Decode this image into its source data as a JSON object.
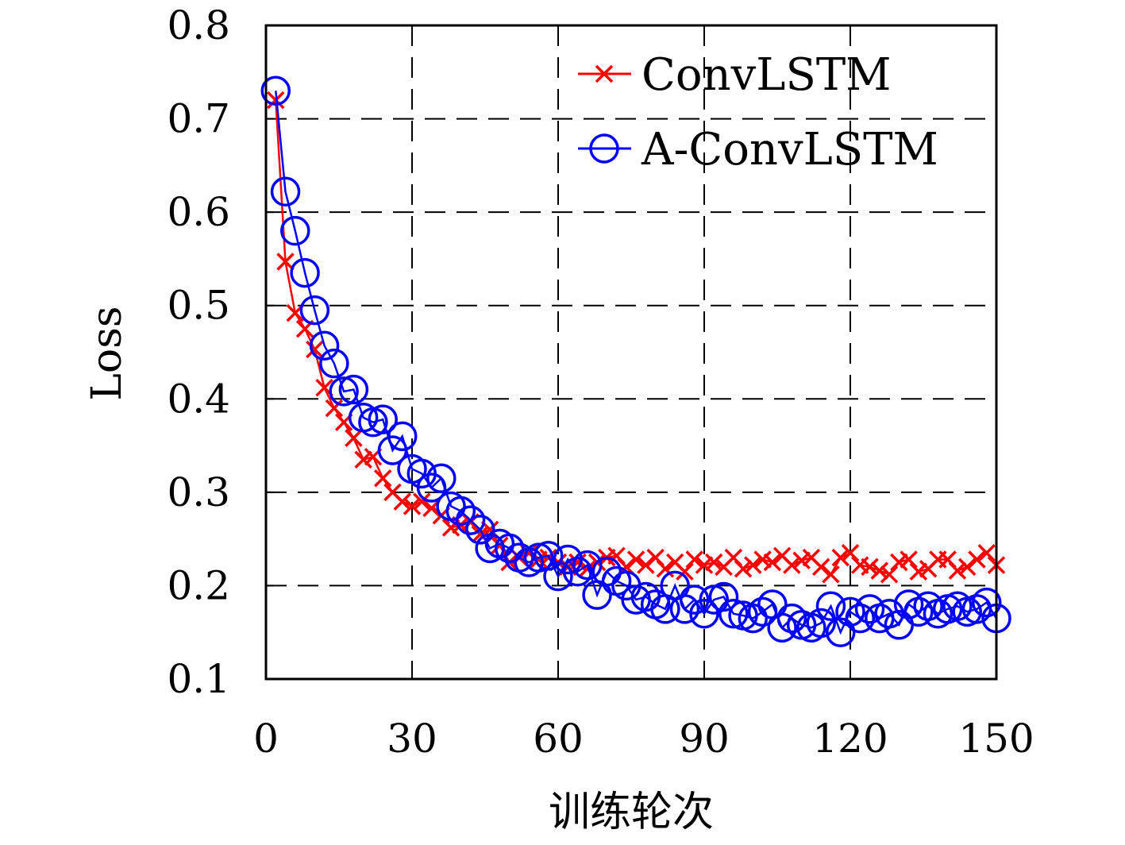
{
  "chart_data": {
    "type": "line",
    "title": "",
    "xlabel": "训练轮次",
    "ylabel": "Loss",
    "xlim": [
      0,
      150
    ],
    "ylim": [
      0.1,
      0.8
    ],
    "x_ticks": [
      "0",
      "30",
      "60",
      "90",
      "120",
      "150"
    ],
    "y_ticks": [
      "0.1",
      "0.2",
      "0.3",
      "0.4",
      "0.5",
      "0.6",
      "0.7",
      "0.8"
    ],
    "grid": true,
    "legend_position": "top-right",
    "series": [
      {
        "name": "ConvLSTM",
        "color": "#ff0000",
        "marker": "x",
        "x": [
          2,
          4,
          6,
          8,
          10,
          12,
          14,
          16,
          18,
          20,
          22,
          24,
          26,
          28,
          30,
          32,
          34,
          36,
          38,
          40,
          42,
          44,
          46,
          48,
          50,
          52,
          54,
          56,
          58,
          60,
          62,
          64,
          66,
          68,
          70,
          72,
          74,
          76,
          78,
          80,
          82,
          84,
          86,
          88,
          90,
          92,
          94,
          96,
          98,
          100,
          102,
          104,
          106,
          108,
          110,
          112,
          114,
          116,
          118,
          120,
          122,
          124,
          126,
          128,
          130,
          132,
          134,
          136,
          138,
          140,
          142,
          144,
          146,
          148,
          150
        ],
        "y": [
          0.72,
          0.547,
          0.492,
          0.475,
          0.453,
          0.412,
          0.39,
          0.375,
          0.358,
          0.335,
          0.338,
          0.315,
          0.3,
          0.29,
          0.285,
          0.29,
          0.283,
          0.275,
          0.262,
          0.265,
          0.268,
          0.255,
          0.26,
          0.243,
          0.225,
          0.23,
          0.235,
          0.228,
          0.23,
          0.225,
          0.22,
          0.225,
          0.218,
          0.225,
          0.23,
          0.232,
          0.22,
          0.228,
          0.222,
          0.23,
          0.218,
          0.225,
          0.215,
          0.228,
          0.222,
          0.225,
          0.22,
          0.23,
          0.218,
          0.222,
          0.228,
          0.225,
          0.232,
          0.222,
          0.227,
          0.23,
          0.22,
          0.212,
          0.23,
          0.235,
          0.222,
          0.22,
          0.216,
          0.212,
          0.225,
          0.228,
          0.215,
          0.218,
          0.228,
          0.228,
          0.216,
          0.22,
          0.228,
          0.235,
          0.222
        ],
        "values_note": ""
      },
      {
        "name": "A-ConvLSTM",
        "color": "#0000ff",
        "marker": "o",
        "x": [
          2,
          4,
          6,
          8,
          10,
          12,
          14,
          16,
          18,
          20,
          22,
          24,
          26,
          28,
          30,
          32,
          34,
          36,
          38,
          40,
          42,
          44,
          46,
          48,
          50,
          52,
          54,
          56,
          58,
          60,
          62,
          64,
          66,
          68,
          70,
          72,
          74,
          76,
          78,
          80,
          82,
          84,
          86,
          88,
          90,
          92,
          94,
          96,
          98,
          100,
          102,
          104,
          106,
          108,
          110,
          112,
          114,
          116,
          118,
          120,
          122,
          124,
          126,
          128,
          130,
          132,
          134,
          136,
          138,
          140,
          142,
          144,
          146,
          148,
          150
        ],
        "y": [
          0.73,
          0.622,
          0.58,
          0.535,
          0.495,
          0.457,
          0.438,
          0.408,
          0.41,
          0.38,
          0.375,
          0.378,
          0.345,
          0.36,
          0.325,
          0.32,
          0.305,
          0.315,
          0.285,
          0.28,
          0.27,
          0.26,
          0.24,
          0.245,
          0.24,
          0.23,
          0.225,
          0.23,
          0.232,
          0.21,
          0.228,
          0.215,
          0.222,
          0.19,
          0.215,
          0.205,
          0.2,
          0.185,
          0.188,
          0.18,
          0.175,
          0.2,
          0.175,
          0.185,
          0.17,
          0.185,
          0.188,
          0.17,
          0.168,
          0.165,
          0.172,
          0.18,
          0.155,
          0.165,
          0.158,
          0.155,
          0.16,
          0.178,
          0.15,
          0.172,
          0.165,
          0.175,
          0.165,
          0.17,
          0.158,
          0.18,
          0.172,
          0.178,
          0.17,
          0.175,
          0.178,
          0.172,
          0.175,
          0.182,
          0.165
        ]
      }
    ]
  }
}
